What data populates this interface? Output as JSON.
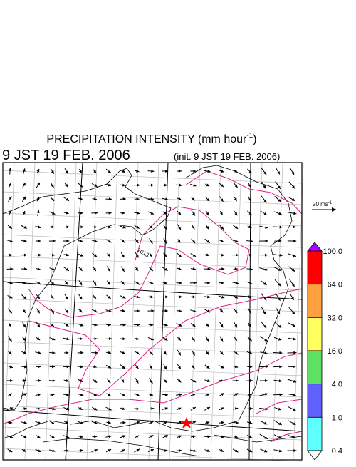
{
  "header": {
    "title": {
      "text": "PRECIPITATION INTENSITY (mm hour",
      "superscript": "-1",
      "suffix": ")"
    },
    "valid_time": "9 JST 19 FEB. 2006",
    "init_time": "(init. 9 JST 19 FEB. 2006)"
  },
  "map": {
    "isobar_label": "1013"
  },
  "wind_legend": {
    "text": "20 ms",
    "superscript": "-1"
  },
  "colorbar": {
    "labels": [
      "100.0",
      "64.0",
      "32.0",
      "16.0",
      "4.0",
      "1.0",
      "0.4"
    ],
    "colors": [
      "#b000ff",
      "#ff0000",
      "#ffa040",
      "#ffff60",
      "#60e060",
      "#6060ff",
      "#60ffff",
      "#ffffff"
    ]
  }
}
